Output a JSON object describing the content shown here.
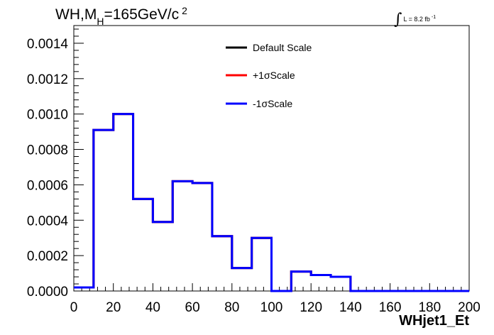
{
  "chart_data": {
    "type": "line",
    "step": true,
    "title": "WH,M",
    "title_subscript": "H",
    "title_rest": "=165GeV/c",
    "title_superscript": "2",
    "lumi_symbol": "∫",
    "lumi_text": "L = 8.2 fb",
    "lumi_sup": "-1",
    "xlabel": "WHjet1_Et",
    "ylabel": "",
    "xlim": [
      0,
      200
    ],
    "ylim": [
      0,
      0.0015
    ],
    "x_ticks": [
      "0",
      "20",
      "40",
      "60",
      "80",
      "100",
      "120",
      "140",
      "160",
      "180",
      "200"
    ],
    "x_tick_values": [
      0,
      20,
      40,
      60,
      80,
      100,
      120,
      140,
      160,
      180,
      200
    ],
    "y_ticks": [
      "0.0000",
      "0.0002",
      "0.0004",
      "0.0006",
      "0.0008",
      "0.0010",
      "0.0012",
      "0.0014"
    ],
    "y_tick_values": [
      0,
      0.0002,
      0.0004,
      0.0006,
      0.0008,
      0.001,
      0.0012,
      0.0014
    ],
    "bin_edges": [
      0,
      10,
      20,
      30,
      40,
      50,
      60,
      70,
      80,
      90,
      100,
      110,
      120,
      130,
      140,
      150,
      160,
      170,
      180,
      190,
      200
    ],
    "series": [
      {
        "name": "Default Scale",
        "color": "#000000",
        "values": [
          2e-05,
          0.00091,
          0.001,
          0.00052,
          0.00039,
          0.00062,
          0.00061,
          0.00031,
          0.00013,
          0.0003,
          0.0,
          0.00011,
          9e-05,
          8e-05,
          0.0,
          0.0,
          0.0,
          0.0,
          0.0,
          0.0
        ]
      },
      {
        "name": "+1σScale",
        "color": "#ff0000",
        "values": [
          2e-05,
          0.00091,
          0.001,
          0.00052,
          0.00039,
          0.00062,
          0.00061,
          0.00031,
          0.00013,
          0.0003,
          0.0,
          0.00011,
          9e-05,
          8e-05,
          0.0,
          0.0,
          0.0,
          0.0,
          0.0,
          0.0
        ]
      },
      {
        "name": "-1σScale",
        "color": "#0000ff",
        "values": [
          2e-05,
          0.00091,
          0.001,
          0.00052,
          0.00039,
          0.00062,
          0.00061,
          0.00031,
          0.00013,
          0.0003,
          0.0,
          0.00011,
          9e-05,
          8e-05,
          0.0,
          0.0,
          0.0,
          0.0,
          0.0,
          0.0
        ]
      }
    ],
    "legend_position": "top-center",
    "grid": false
  }
}
